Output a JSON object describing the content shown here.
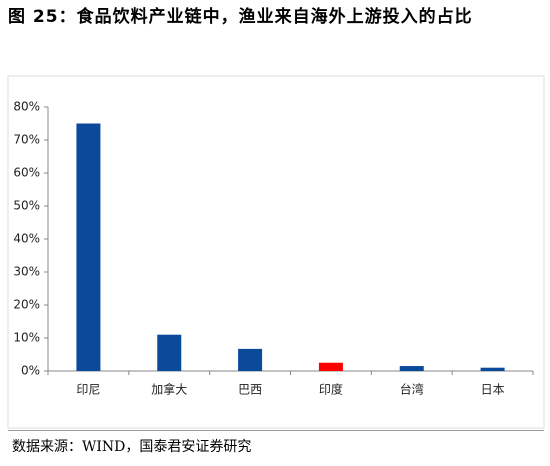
{
  "chart_data": {
    "type": "bar",
    "title": "图 25：食品饮料产业链中，渔业来自海外上游投入的占比",
    "source": "数据来源：WIND，国泰君安证券研究",
    "categories": [
      "印尼",
      "加拿大",
      "巴西",
      "印度",
      "台湾",
      "日本"
    ],
    "values": [
      75,
      11,
      6.7,
      2.5,
      1.5,
      1.0
    ],
    "colors": [
      "#0b4a9a",
      "#0b4a9a",
      "#0b4a9a",
      "#ff0000",
      "#0b4a9a",
      "#0b4a9a"
    ],
    "ylim": [
      0,
      80
    ],
    "yticks": [
      {
        "value": 0,
        "label": "0%"
      },
      {
        "value": 10,
        "label": "10%"
      },
      {
        "value": 20,
        "label": "20%"
      },
      {
        "value": 30,
        "label": "30%"
      },
      {
        "value": 40,
        "label": "40%"
      },
      {
        "value": 50,
        "label": "50%"
      },
      {
        "value": 60,
        "label": "60%"
      },
      {
        "value": 70,
        "label": "70%"
      },
      {
        "value": 80,
        "label": "80%"
      }
    ],
    "grid": false
  }
}
